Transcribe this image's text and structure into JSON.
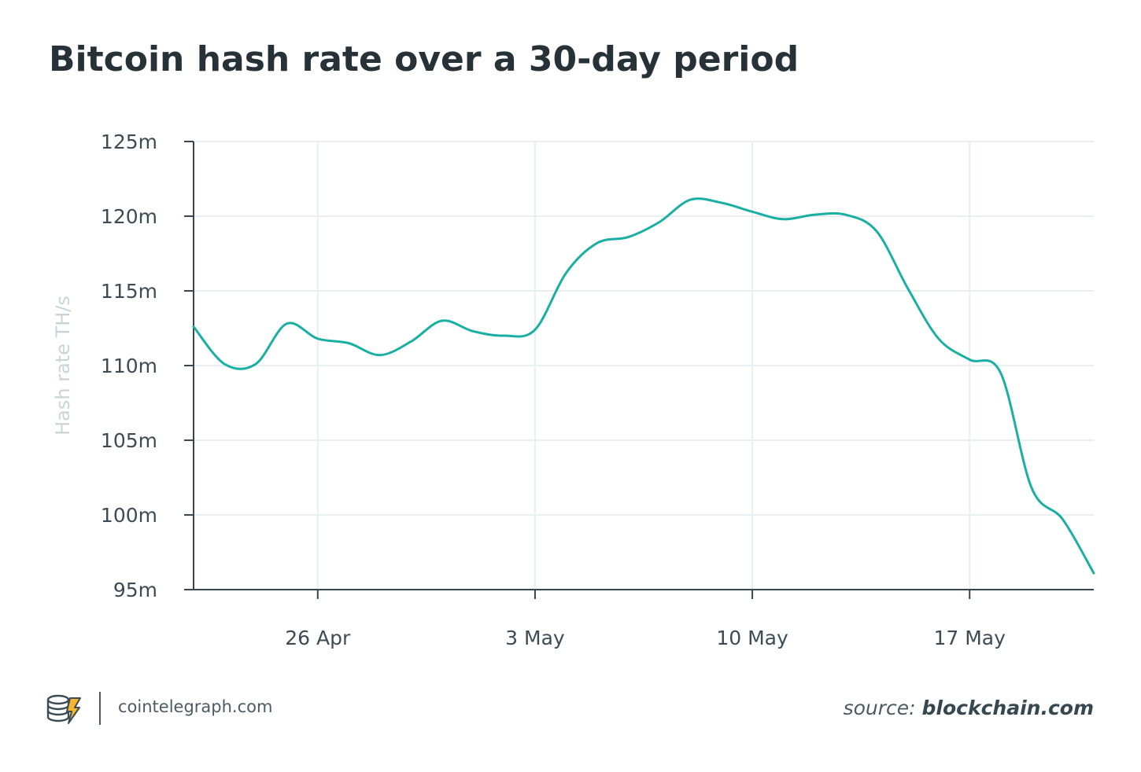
{
  "title": "Bitcoin hash rate over a 30-day period",
  "footer": {
    "site": "cointelegraph.com",
    "source_label": "source:",
    "source_name": "blockchain.com",
    "logo_icon": "cointelegraph-logo-icon"
  },
  "colors": {
    "line": "#1aafa3",
    "grid": "#e9eef1",
    "axis": "#37474f"
  },
  "chart_data": {
    "type": "line",
    "title": "Bitcoin hash rate over a 30-day period",
    "xlabel": "",
    "ylabel": "Hash rate TH/s",
    "x_ticks": [
      "26 Apr",
      "3 May",
      "10 May",
      "17 May"
    ],
    "y_ticks": [
      "95m",
      "100m",
      "105m",
      "110m",
      "115m",
      "120m",
      "125m"
    ],
    "ylim": [
      95,
      125
    ],
    "y_unit": "m TH/s",
    "grid": true,
    "series": [
      {
        "values": [
          {
            "x": "2021-04-22",
            "y": 112.6
          },
          {
            "x": "2021-04-23",
            "y": 110.1
          },
          {
            "x": "2021-04-24",
            "y": 110.1
          },
          {
            "x": "2021-04-25",
            "y": 112.8
          },
          {
            "x": "2021-04-26",
            "y": 111.8
          },
          {
            "x": "2021-04-27",
            "y": 111.5
          },
          {
            "x": "2021-04-28",
            "y": 110.7
          },
          {
            "x": "2021-04-29",
            "y": 111.6
          },
          {
            "x": "2021-04-30",
            "y": 113.0
          },
          {
            "x": "2021-05-01",
            "y": 112.3
          },
          {
            "x": "2021-05-02",
            "y": 112.0
          },
          {
            "x": "2021-05-03",
            "y": 112.4
          },
          {
            "x": "2021-05-04",
            "y": 116.2
          },
          {
            "x": "2021-05-05",
            "y": 118.2
          },
          {
            "x": "2021-05-06",
            "y": 118.6
          },
          {
            "x": "2021-05-07",
            "y": 119.6
          },
          {
            "x": "2021-05-08",
            "y": 121.1
          },
          {
            "x": "2021-05-09",
            "y": 120.9
          },
          {
            "x": "2021-05-10",
            "y": 120.3
          },
          {
            "x": "2021-05-11",
            "y": 119.8
          },
          {
            "x": "2021-05-12",
            "y": 120.1
          },
          {
            "x": "2021-05-13",
            "y": 120.1
          },
          {
            "x": "2021-05-14",
            "y": 119.0
          },
          {
            "x": "2021-05-15",
            "y": 115.2
          },
          {
            "x": "2021-05-16",
            "y": 111.8
          },
          {
            "x": "2021-05-17",
            "y": 110.4
          },
          {
            "x": "2021-05-18",
            "y": 109.5
          },
          {
            "x": "2021-05-19",
            "y": 101.8
          },
          {
            "x": "2021-05-20",
            "y": 99.7
          },
          {
            "x": "2021-05-21",
            "y": 96.1
          }
        ]
      }
    ]
  }
}
